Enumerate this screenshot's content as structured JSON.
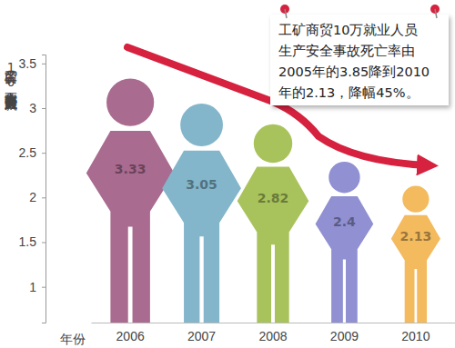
{
  "chart_data": {
    "type": "bar",
    "y_label": "工矿商贸10万就业人员生产安全事故死亡率",
    "x_label": "年份",
    "annotation": [
      "工矿商贸10万就业人员",
      "生产安全事故死亡率由",
      "2005年的3.85降到2010",
      "年的2.13，降幅45%。"
    ],
    "categories": [
      "2006",
      "2007",
      "2008",
      "2009",
      "2010"
    ],
    "values": [
      3.33,
      3.05,
      2.82,
      2.4,
      2.13
    ],
    "colors": [
      "#a96b8f",
      "#83b6ca",
      "#a9c35c",
      "#9090d2",
      "#f4ba5e"
    ],
    "ylim": [
      0.6,
      3.6
    ],
    "yticks": [
      1,
      1.5,
      2,
      2.5,
      3,
      3.5
    ],
    "data_labels": true,
    "grid": false
  }
}
